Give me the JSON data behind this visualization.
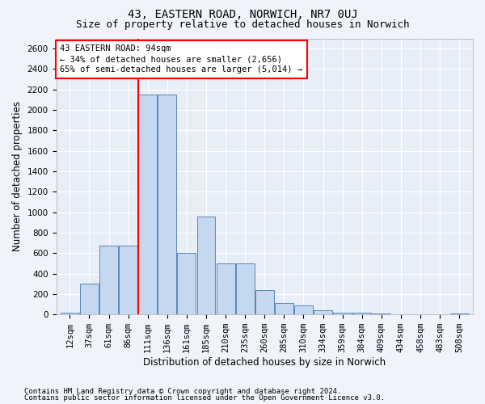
{
  "title": "43, EASTERN ROAD, NORWICH, NR7 0UJ",
  "subtitle": "Size of property relative to detached houses in Norwich",
  "xlabel": "Distribution of detached houses by size in Norwich",
  "ylabel": "Number of detached properties",
  "categories": [
    "12sqm",
    "37sqm",
    "61sqm",
    "86sqm",
    "111sqm",
    "136sqm",
    "161sqm",
    "185sqm",
    "210sqm",
    "235sqm",
    "260sqm",
    "285sqm",
    "310sqm",
    "334sqm",
    "359sqm",
    "384sqm",
    "409sqm",
    "434sqm",
    "458sqm",
    "483sqm",
    "508sqm"
  ],
  "values": [
    20,
    300,
    675,
    675,
    2150,
    2150,
    600,
    960,
    500,
    500,
    235,
    115,
    90,
    40,
    20,
    20,
    8,
    5,
    5,
    5,
    8
  ],
  "bar_color": "#c5d8f0",
  "bar_edge_color": "#5588bb",
  "red_line_x": 3.5,
  "property_label": "43 EASTERN ROAD: 94sqm",
  "annotation_line1": "← 34% of detached houses are smaller (2,656)",
  "annotation_line2": "65% of semi-detached houses are larger (5,014) →",
  "ylim": [
    0,
    2700
  ],
  "yticks": [
    0,
    200,
    400,
    600,
    800,
    1000,
    1200,
    1400,
    1600,
    1800,
    2000,
    2200,
    2400,
    2600
  ],
  "footer1": "Contains HM Land Registry data © Crown copyright and database right 2024.",
  "footer2": "Contains public sector information licensed under the Open Government Licence v3.0.",
  "background_color": "#f0f4fa",
  "plot_bg_color": "#e8eef8",
  "grid_color": "#d0d8e8",
  "title_fontsize": 10,
  "subtitle_fontsize": 9,
  "axis_label_fontsize": 8.5,
  "tick_fontsize": 7.5,
  "footer_fontsize": 6.5
}
